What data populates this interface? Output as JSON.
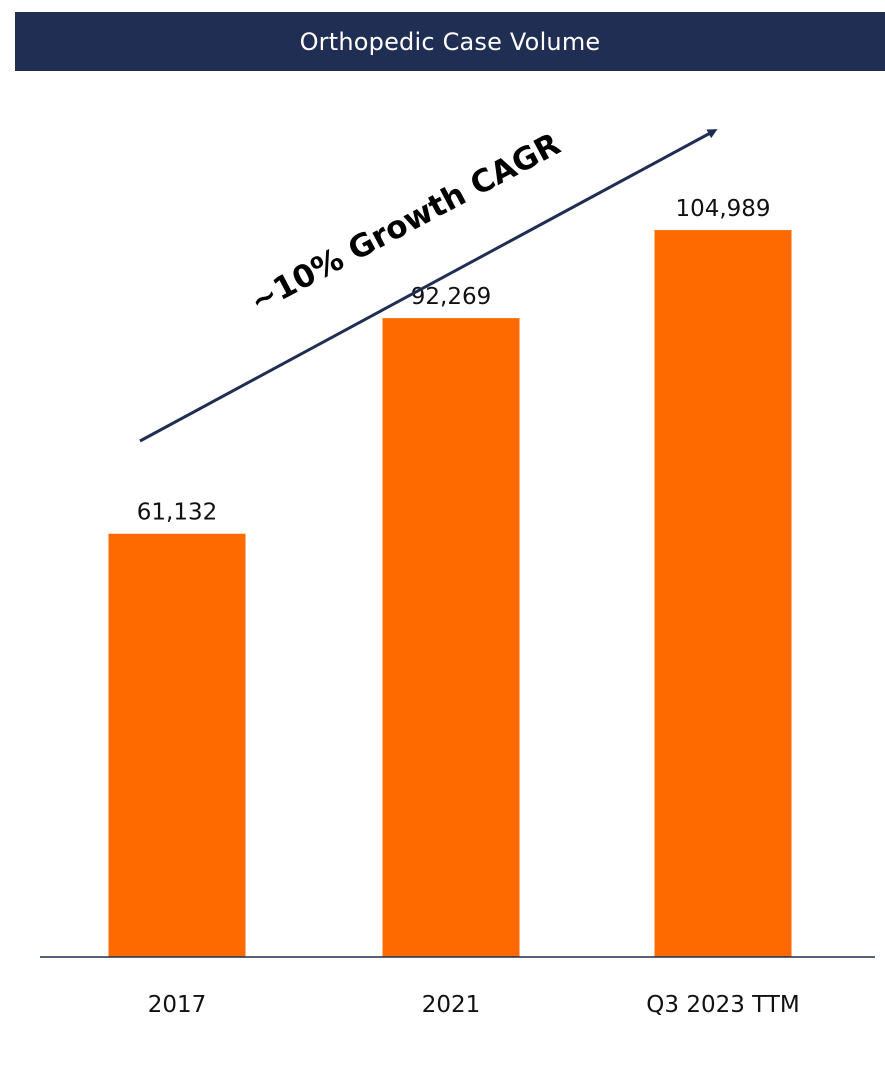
{
  "chart_data": {
    "type": "bar",
    "title": "Orthopedic Case Volume",
    "categories": [
      "2017",
      "2021",
      "Q3 2023 TTM"
    ],
    "values": [
      61132,
      92269,
      104989
    ],
    "value_labels": [
      "61,132",
      "92,269",
      "104,989"
    ],
    "annotation": "~10% Growth CAGR",
    "ylim": [
      0,
      118000
    ],
    "grid": false,
    "legend": "none",
    "colors": {
      "bar": "#ff6a00",
      "title_background": "#1f2e52",
      "title_text": "#ffffff",
      "arrow": "#1f2e52",
      "axis": "#1f2e52"
    }
  }
}
